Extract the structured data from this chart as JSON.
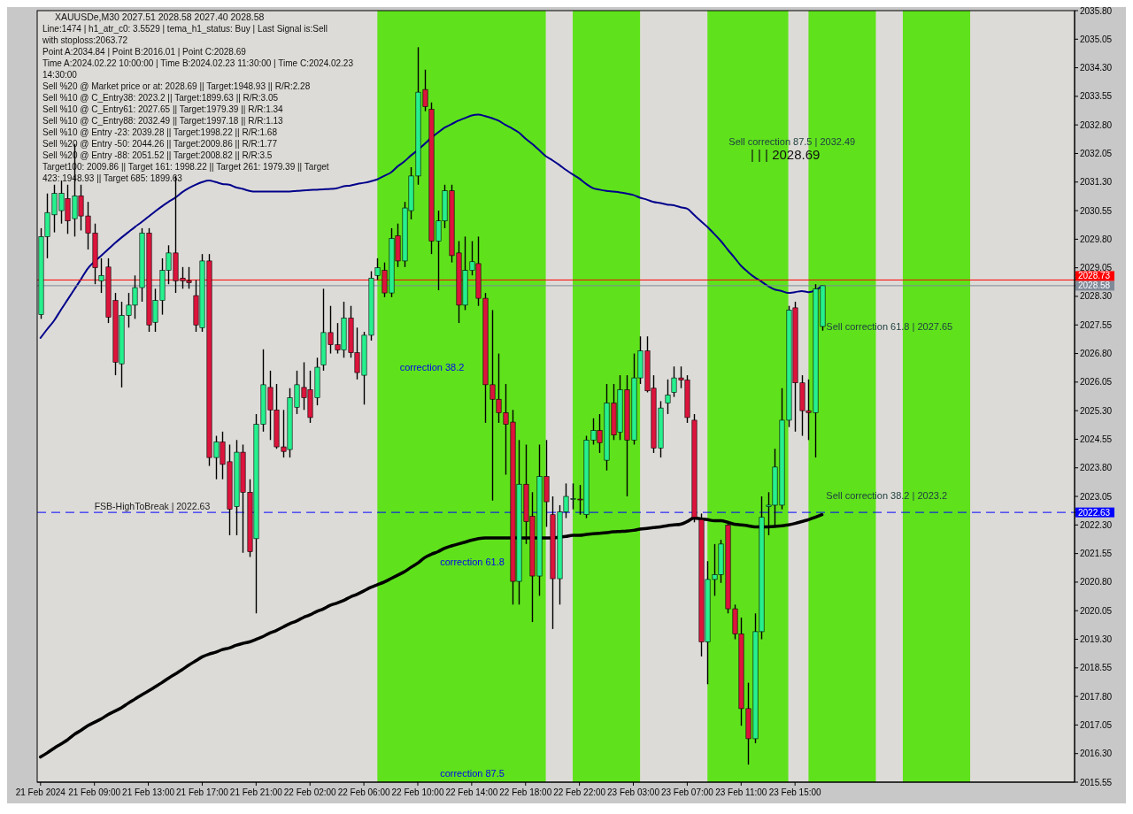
{
  "chart_data": {
    "type": "candlestick",
    "title": "XAUUSDe,M30  2027.51 2028.58 2027.40 2028.58",
    "categories": [
      "21 Feb 2024",
      null,
      null,
      null,
      null,
      null,
      null,
      null,
      "21 Feb 09:00",
      null,
      null,
      null,
      null,
      null,
      null,
      null,
      "21 Feb 13:00",
      null,
      null,
      null,
      null,
      null,
      null,
      null,
      "21 Feb 17:00",
      null,
      null,
      null,
      null,
      null,
      null,
      null,
      "21 Feb 21:00",
      null,
      null,
      null,
      null,
      null,
      null,
      null,
      "22 Feb 02:00",
      null,
      null,
      null,
      null,
      null,
      null,
      null,
      "22 Feb 06:00",
      null,
      null,
      null,
      null,
      null,
      null,
      null,
      "22 Feb 10:00",
      null,
      null,
      null,
      null,
      null,
      null,
      null,
      "22 Feb 14:00",
      null,
      null,
      null,
      null,
      null,
      null,
      null,
      "22 Feb 18:00",
      null,
      null,
      null,
      null,
      null,
      null,
      null,
      "22 Feb 22:00",
      null,
      null,
      null,
      null,
      null,
      null,
      null,
      "23 Feb 03:00",
      null,
      null,
      null,
      null,
      null,
      null,
      null,
      "23 Feb 07:00",
      null,
      null,
      null,
      null,
      null,
      null,
      null,
      "23 Feb 11:00",
      null,
      null,
      null,
      null,
      null,
      null,
      null,
      "23 Feb 15:00",
      null,
      null,
      null,
      null,
      null,
      null,
      null,
      null,
      null,
      null,
      null,
      null,
      null,
      null,
      null,
      null,
      null,
      null,
      null,
      null,
      null,
      null,
      null,
      null,
      null,
      null,
      null,
      null,
      null,
      null,
      null,
      null,
      null,
      null,
      null,
      null,
      null,
      null,
      null,
      null,
      null
    ],
    "ohlc": [
      [
        2027.82,
        2030.09,
        2027.71,
        2029.87
      ],
      [
        2029.87,
        2031.0,
        2029.3,
        2030.5
      ],
      [
        2030.44,
        2031.23,
        2029.98,
        2031.0
      ],
      [
        2030.55,
        2031.34,
        2030.21,
        2031.0
      ],
      [
        2030.87,
        2031.23,
        2029.94,
        2030.28
      ],
      [
        2030.34,
        2032.3,
        2029.87,
        2030.94
      ],
      [
        2030.94,
        2031.23,
        2030.03,
        2030.41
      ],
      [
        2030.41,
        2030.78,
        2029.53,
        2029.96
      ],
      [
        2029.96,
        2030.21,
        2028.62,
        2029.05
      ],
      [
        2028.71,
        2029.3,
        2028.39,
        2028.85
      ],
      [
        2029.07,
        2029.3,
        2027.6,
        2027.75
      ],
      [
        2028.19,
        2028.39,
        2026.23,
        2026.57
      ],
      [
        2026.53,
        2028.16,
        2025.91,
        2027.8
      ],
      [
        2027.8,
        2028.39,
        2027.48,
        2028.07
      ],
      [
        2028.07,
        2028.85,
        2027.71,
        2028.53
      ],
      [
        2028.53,
        2030.09,
        2028.16,
        2029.96
      ],
      [
        2029.96,
        2030.09,
        2027.37,
        2027.55
      ],
      [
        2027.62,
        2028.5,
        2027.37,
        2028.19
      ],
      [
        2028.19,
        2029.3,
        2027.82,
        2028.98
      ],
      [
        2028.98,
        2029.64,
        2028.62,
        2029.44
      ],
      [
        2029.44,
        2031.46,
        2028.39,
        2028.71
      ],
      [
        2028.78,
        2029.07,
        2028.5,
        2028.71
      ],
      [
        2028.71,
        2029.07,
        2028.5,
        2028.66
      ],
      [
        2028.32,
        2028.73,
        2027.37,
        2027.55
      ],
      [
        2027.48,
        2029.41,
        2027.37,
        2029.23
      ],
      [
        2029.23,
        2029.41,
        2023.85,
        2024.07
      ],
      [
        2024.07,
        2024.64,
        2023.5,
        2024.48
      ],
      [
        2024.48,
        2024.75,
        2023.5,
        2023.89
      ],
      [
        2023.96,
        2024.41,
        2022.03,
        2022.71
      ],
      [
        2022.78,
        2024.53,
        2022.03,
        2024.21
      ],
      [
        2024.21,
        2024.41,
        2021.57,
        2023.16
      ],
      [
        2023.16,
        2023.5,
        2021.46,
        2021.6
      ],
      [
        2021.94,
        2025.21,
        2019.98,
        2024.94
      ],
      [
        2024.94,
        2026.91,
        2024.75,
        2025.98
      ],
      [
        2025.91,
        2026.35,
        2024.53,
        2025.32
      ],
      [
        2025.32,
        2026.0,
        2024.3,
        2024.35
      ],
      [
        2024.35,
        2025.32,
        2024.07,
        2024.23
      ],
      [
        2024.28,
        2025.89,
        2024.07,
        2025.64
      ],
      [
        2025.39,
        2026.35,
        2025.21,
        2025.98
      ],
      [
        2025.91,
        2026.57,
        2025.32,
        2025.64
      ],
      [
        2025.85,
        2026.35,
        2024.98,
        2025.12
      ],
      [
        2025.64,
        2026.69,
        2025.44,
        2026.44
      ],
      [
        2026.5,
        2028.5,
        2026.35,
        2027.35
      ],
      [
        2027.35,
        2028.05,
        2026.8,
        2027.03
      ],
      [
        2027.03,
        2027.6,
        2026.8,
        2026.89
      ],
      [
        2026.89,
        2028.16,
        2026.69,
        2027.73
      ],
      [
        2027.73,
        2028.05,
        2026.69,
        2026.82
      ],
      [
        2026.82,
        2027.48,
        2026.12,
        2026.3
      ],
      [
        2026.23,
        2027.37,
        2025.46,
        2027.28
      ],
      [
        2027.28,
        2028.96,
        2027.14,
        2028.78
      ],
      [
        2028.85,
        2029.3,
        2028.73,
        2029.05
      ],
      [
        2028.98,
        2029.19,
        2028.28,
        2028.39
      ],
      [
        2028.39,
        2030.09,
        2028.28,
        2029.82
      ],
      [
        2029.89,
        2030.21,
        2029.07,
        2029.23
      ],
      [
        2029.23,
        2030.78,
        2029.07,
        2030.62
      ],
      [
        2030.55,
        2031.69,
        2030.32,
        2031.46
      ],
      [
        2031.46,
        2034.84,
        2031.23,
        2033.66
      ],
      [
        2033.73,
        2034.25,
        2033.16,
        2033.28
      ],
      [
        2033.21,
        2033.39,
        2029.41,
        2029.75
      ],
      [
        2029.75,
        2030.55,
        2028.46,
        2030.28
      ],
      [
        2030.28,
        2031.23,
        2030.09,
        2031.07
      ],
      [
        2031.07,
        2031.23,
        2029.19,
        2029.37
      ],
      [
        2029.44,
        2029.75,
        2027.6,
        2028.07
      ],
      [
        2028.07,
        2029.87,
        2027.94,
        2028.98
      ],
      [
        2028.98,
        2029.75,
        2028.85,
        2029.21
      ],
      [
        2029.16,
        2029.87,
        2028.05,
        2028.25
      ],
      [
        2028.25,
        2028.39,
        2024.98,
        2025.98
      ],
      [
        2025.98,
        2027.94,
        2022.94,
        2025.6
      ],
      [
        2025.6,
        2026.8,
        2024.98,
        2025.25
      ],
      [
        2025.25,
        2026.0,
        2023.62,
        2024.94
      ],
      [
        2025.0,
        2025.32,
        2020.21,
        2020.82
      ],
      [
        2020.82,
        2024.53,
        2020.21,
        2023.37
      ],
      [
        2023.37,
        2024.41,
        2021.8,
        2022.39
      ],
      [
        2022.53,
        2023.16,
        2019.75,
        2020.96
      ],
      [
        2020.96,
        2024.41,
        2020.44,
        2023.57
      ],
      [
        2023.57,
        2024.53,
        2022.25,
        2022.91
      ],
      [
        2022.57,
        2023.05,
        2019.57,
        2020.89
      ],
      [
        2020.89,
        2022.82,
        2020.21,
        2022.64
      ],
      [
        2022.64,
        2023.39,
        2022.48,
        2023.05
      ],
      [
        2022.98,
        2023.39,
        2022.71,
        2022.99
      ],
      [
        2022.98,
        2023.35,
        2022.57,
        2022.96
      ],
      [
        2022.57,
        2024.64,
        2022.48,
        2024.53
      ],
      [
        2024.53,
        2025.1,
        2024.41,
        2024.78
      ],
      [
        2024.78,
        2025.21,
        2024.19,
        2024.46
      ],
      [
        2024.0,
        2026.0,
        2023.73,
        2025.5
      ],
      [
        2025.5,
        2026.0,
        2024.53,
        2024.66
      ],
      [
        2024.73,
        2026.23,
        2024.53,
        2025.85
      ],
      [
        2025.85,
        2026.23,
        2023.05,
        2024.53
      ],
      [
        2024.53,
        2026.8,
        2024.41,
        2026.16
      ],
      [
        2026.16,
        2027.25,
        2026.0,
        2026.87
      ],
      [
        2026.87,
        2027.25,
        2025.78,
        2025.82
      ],
      [
        2025.89,
        2026.23,
        2024.19,
        2024.32
      ],
      [
        2024.32,
        2025.55,
        2024.07,
        2025.37
      ],
      [
        2025.5,
        2026.12,
        2025.21,
        2025.71
      ],
      [
        2025.78,
        2026.46,
        2025.66,
        2026.16
      ],
      [
        2026.16,
        2026.46,
        2025.89,
        2026.1
      ],
      [
        2026.1,
        2026.23,
        2024.98,
        2025.12
      ],
      [
        2025.05,
        2025.21,
        2022.37,
        2022.5
      ],
      [
        2022.44,
        2022.6,
        2018.85,
        2019.23
      ],
      [
        2019.23,
        2021.35,
        2018.12,
        2020.87
      ],
      [
        2020.87,
        2021.8,
        2020.44,
        2021.0
      ],
      [
        2021.0,
        2021.91,
        2020.78,
        2021.8
      ],
      [
        2022.3,
        2022.37,
        2019.98,
        2020.1
      ],
      [
        2020.1,
        2020.21,
        2019.3,
        2019.44
      ],
      [
        2019.44,
        2019.87,
        2017.03,
        2017.48
      ],
      [
        2017.48,
        2018.16,
        2016.01,
        2016.69
      ],
      [
        2016.69,
        2019.98,
        2016.57,
        2019.5
      ],
      [
        2019.5,
        2023.05,
        2019.3,
        2022.5
      ],
      [
        2022.78,
        2023.16,
        2022.03,
        2022.82
      ],
      [
        2022.82,
        2024.3,
        2022.25,
        2023.82
      ],
      [
        2022.82,
        2025.89,
        2022.71,
        2025.05
      ],
      [
        2025.05,
        2028.05,
        2024.87,
        2027.94
      ],
      [
        2028.0,
        2028.16,
        2024.75,
        2026.03
      ],
      [
        2026.03,
        2026.23,
        2024.64,
        2025.3
      ],
      [
        2025.3,
        2026.12,
        2024.53,
        2025.25
      ],
      [
        2025.25,
        2028.62,
        2024.07,
        2028.5
      ],
      [
        2027.51,
        2028.58,
        2027.4,
        2028.58
      ],
      null,
      null,
      null,
      null,
      null,
      null,
      null,
      null,
      null,
      null,
      null,
      null,
      null,
      null,
      null,
      null,
      null,
      null,
      null,
      null,
      null,
      null,
      null,
      null,
      null,
      null,
      null,
      null,
      null,
      null,
      null,
      null,
      null,
      null,
      null,
      null,
      null
    ],
    "series": [
      {
        "type": "line",
        "color": "#00008b",
        "values": [
          2027.21,
          2027.44,
          2027.66,
          2027.94,
          2028.21,
          2028.48,
          2028.75,
          2029.03,
          2029.21,
          2029.37,
          2029.53,
          2029.69,
          2029.84,
          2029.98,
          2030.12,
          2030.25,
          2030.39,
          2030.53,
          2030.66,
          2030.78,
          2030.89,
          2031.03,
          2031.14,
          2031.23,
          2031.3,
          2031.34,
          2031.3,
          2031.25,
          2031.23,
          2031.16,
          2031.12,
          2031.07,
          2031.05,
          2031.05,
          2031.05,
          2031.05,
          2031.05,
          2031.05,
          2031.07,
          2031.08,
          2031.09,
          2031.1,
          2031.11,
          2031.12,
          2031.14,
          2031.19,
          2031.21,
          2031.25,
          2031.28,
          2031.32,
          2031.37,
          2031.46,
          2031.55,
          2031.71,
          2031.84,
          2032.0,
          2032.14,
          2032.3,
          2032.46,
          2032.6,
          2032.73,
          2032.82,
          2032.91,
          2032.98,
          2033.05,
          2033.07,
          2033.03,
          2032.98,
          2032.91,
          2032.8,
          2032.71,
          2032.6,
          2032.44,
          2032.3,
          2032.14,
          2031.98,
          2031.87,
          2031.75,
          2031.62,
          2031.5,
          2031.39,
          2031.25,
          2031.14,
          2031.1,
          2031.07,
          2031.05,
          2031.03,
          2031.0,
          2030.96,
          2030.89,
          2030.84,
          2030.78,
          2030.75,
          2030.71,
          2030.69,
          2030.64,
          2030.6,
          2030.44,
          2030.28,
          2030.12,
          2029.94,
          2029.75,
          2029.53,
          2029.32,
          2029.1,
          2028.94,
          2028.8,
          2028.69,
          2028.57,
          2028.48,
          2028.44,
          2028.39,
          2028.41,
          2028.44,
          2028.41,
          2028.46,
          2028.57,
          null,
          null,
          null,
          null,
          null,
          null,
          null,
          null,
          null,
          null,
          null,
          null,
          null,
          null,
          null,
          null,
          null,
          null,
          null,
          null,
          null,
          null,
          null,
          null,
          null,
          null,
          null,
          null,
          null,
          null,
          null,
          null,
          null,
          null,
          null,
          null,
          null
        ]
      },
      {
        "type": "line",
        "color": "#000000",
        "values": [
          2016.21,
          2016.32,
          2016.44,
          2016.55,
          2016.66,
          2016.8,
          2016.91,
          2017.03,
          2017.12,
          2017.21,
          2017.32,
          2017.41,
          2017.5,
          2017.62,
          2017.73,
          2017.84,
          2017.94,
          2018.05,
          2018.16,
          2018.28,
          2018.39,
          2018.5,
          2018.62,
          2018.73,
          2018.84,
          2018.91,
          2018.96,
          2019.03,
          2019.07,
          2019.14,
          2019.19,
          2019.23,
          2019.3,
          2019.37,
          2019.46,
          2019.53,
          2019.62,
          2019.71,
          2019.78,
          2019.87,
          2019.94,
          2020.03,
          2020.1,
          2020.19,
          2020.25,
          2020.32,
          2020.41,
          2020.48,
          2020.57,
          2020.66,
          2020.73,
          2020.8,
          2020.89,
          2020.98,
          2021.07,
          2021.19,
          2021.3,
          2021.44,
          2021.53,
          2021.6,
          2021.69,
          2021.75,
          2021.8,
          2021.85,
          2021.9,
          2021.94,
          2021.96,
          2021.96,
          2021.96,
          2021.96,
          2021.96,
          2021.96,
          2021.96,
          2021.96,
          2021.96,
          2021.96,
          2021.96,
          2021.98,
          2022.0,
          2022.03,
          2022.03,
          2022.05,
          2022.07,
          2022.08,
          2022.1,
          2022.12,
          2022.13,
          2022.14,
          2022.16,
          2022.19,
          2022.21,
          2022.23,
          2022.25,
          2022.28,
          2022.3,
          2022.32,
          2022.39,
          2022.48,
          2022.46,
          2022.44,
          2022.41,
          2022.41,
          2022.37,
          2022.32,
          2022.3,
          2022.28,
          2022.25,
          2022.25,
          2022.25,
          2022.26,
          2022.28,
          2022.3,
          2022.34,
          2022.39,
          2022.44,
          2022.5,
          2022.57,
          null,
          null,
          null,
          null,
          null,
          null,
          null,
          null,
          null,
          null,
          null,
          null,
          null,
          null,
          null,
          null,
          null,
          null,
          null,
          null,
          null,
          null,
          null,
          null,
          null,
          null,
          null,
          null,
          null,
          null,
          null,
          null,
          null,
          null,
          null,
          null,
          null
        ]
      }
    ],
    "ylim": [
      2015.55,
      2035.8
    ],
    "yticks": [
      2015.55,
      {
        "value": 2016.3,
        "label": "2016.30"
      },
      2017.05,
      {
        "value": 2017.8,
        "label": "2017.80"
      },
      2018.55,
      {
        "value": 2019.3,
        "label": "2019.30"
      },
      2020.05,
      {
        "value": 2020.8,
        "label": "2020.80"
      },
      2021.55,
      {
        "value": 2022.3,
        "label": "2022.30"
      },
      2022.63,
      2023.05,
      {
        "value": 2023.8,
        "label": "2023.80"
      },
      2024.55,
      {
        "value": 2025.3,
        "label": "2025.30"
      },
      2026.05,
      {
        "value": 2026.8,
        "label": "2026.80"
      },
      2027.55,
      {
        "value": 2028.3,
        "label": "2028.30"
      },
      2028.58,
      2028.73,
      2029.05,
      {
        "value": 2029.8,
        "label": "2029.80"
      },
      2030.55,
      {
        "value": 2031.3,
        "label": "2031.30"
      },
      2032.05,
      {
        "value": 2032.8,
        "label": "2032.80"
      },
      2033.55,
      {
        "value": 2034.3,
        "label": "2034.30"
      },
      2035.05,
      {
        "value": 2035.8,
        "label": "2035.80"
      }
    ],
    "ref_lines": [
      {
        "axis": "y",
        "value": 2022.63,
        "label": "FSB-HighToBreak | 2022.63",
        "color": "#0000ff",
        "line_style": "dashed"
      },
      {
        "axis": "y",
        "value": 2028.73,
        "color": "#ff0000",
        "line_style": "solid"
      },
      {
        "axis": "y",
        "value": 2028.58,
        "color": "#7f8a99",
        "line_style": "solid"
      }
    ],
    "annotations": [
      "Line:1474 | h1_atr_c0: 3.5529 | tema_h1_status: Buy | Last Signal is:Sell with stoploss:2063.72",
      "Point A:2034.84 | Point B:2016.01 | Point C:2028.69",
      "Time A:2024.02.22 10:00:00 | Time B:2024.02.23 11:30:00 | Time C:2024.02.23 14:30:00",
      "Sell %20 @ Market price or at: 2028.69 || Target:1948.93 || R/R:2.28",
      "Sell %10 @ C_Entry38: 2023.2 || Target:1899.63 || R/R:3.05",
      "Sell %10 @ C_Entry61: 2027.65 || Target:1979.39 || R/R:1.34",
      "Sell %10 @ C_Entry88: 2032.49 || Target:1997.18 || R/R:1.13",
      "Sell %10 @ Entry -23: 2039.28 || Target:1998.22 || R/R:1.68",
      "Sell %20 @ Entry -50: 2044.26 || Target:2009.86 || R/R:1.77",
      "Sell %20 @ Entry -88: 2051.52 || Target:2008.82 || R/R:3.5",
      "Target100: 2009.86 || Target 161: 1998.22 || Target 261: 1979.39 || Target 423: 1948.93 || Target 685: 1899.63",
      "Sell correction 87.5 | 2032.49",
      "| | | 2028.69",
      "Sell correction 61.8 | 2027.65",
      "Sell correction 38.2 | 2023.2",
      "correction 38.2",
      "correction 61.8",
      "correction 87.5"
    ],
    "grid": false
  }
}
